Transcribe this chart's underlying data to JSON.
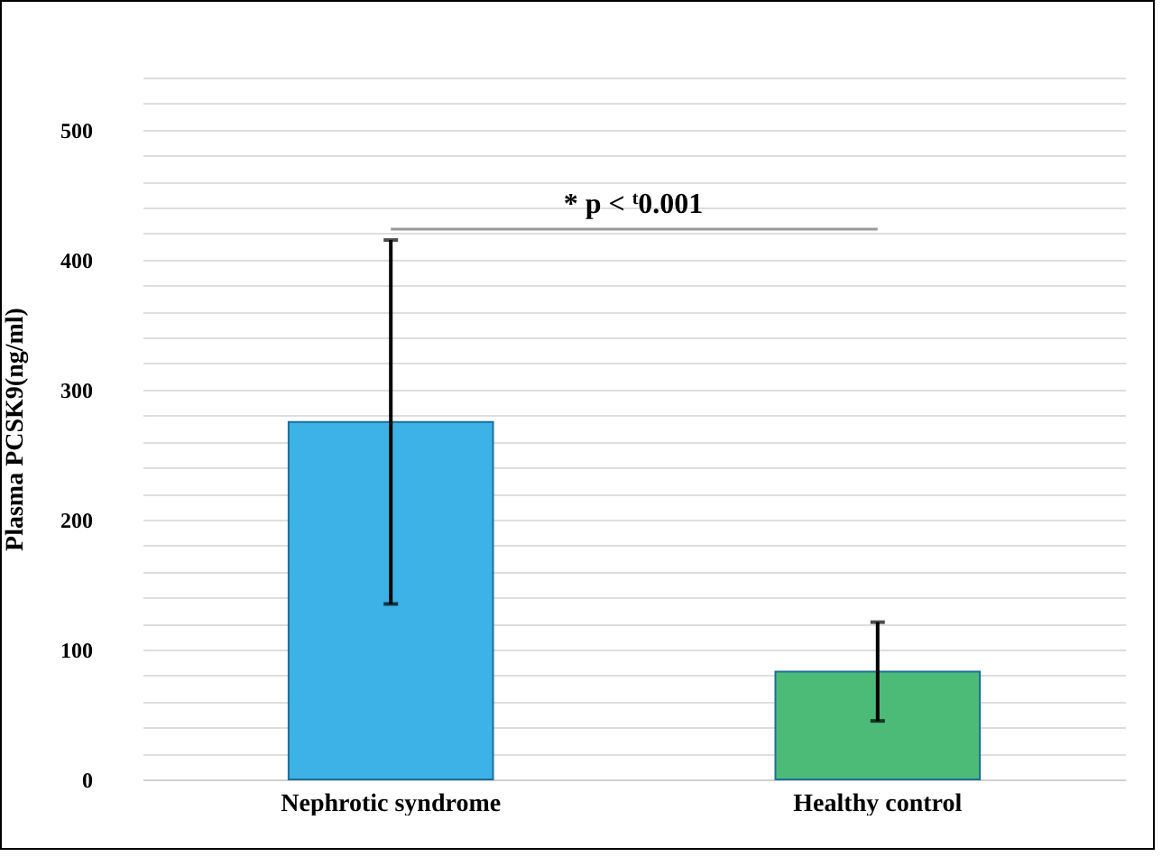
{
  "chart_data": {
    "type": "bar",
    "ylabel": "Plasma PCSK9(ng/ml)",
    "categories": [
      "Nephrotic syndrome",
      "Healthy control"
    ],
    "values": [
      275,
      83
    ],
    "colors": [
      "#3cb2e6",
      "#4dbb78"
    ],
    "errors": [
      [
        135,
        415
      ],
      [
        45,
        121
      ]
    ],
    "ylim": [
      0,
      540
    ],
    "yticks": [
      0,
      {
        "value": 20,
        "label": null
      },
      {
        "value": 40,
        "label": null
      },
      {
        "value": 60,
        "label": null
      },
      {
        "value": 80,
        "label": null
      },
      100,
      {
        "value": 120,
        "label": null
      },
      {
        "value": 140,
        "label": null
      },
      {
        "value": 160,
        "label": null
      },
      {
        "value": 180,
        "label": null
      },
      200,
      {
        "value": 220,
        "label": null
      },
      {
        "value": 240,
        "label": null
      },
      {
        "value": 260,
        "label": null
      },
      {
        "value": 280,
        "label": null
      },
      300,
      {
        "value": 320,
        "label": null
      },
      {
        "value": 340,
        "label": null
      },
      {
        "value": 360,
        "label": null
      },
      {
        "value": 380,
        "label": null
      },
      400,
      {
        "value": 420,
        "label": null
      },
      {
        "value": 440,
        "label": null
      },
      {
        "value": 460,
        "label": null
      },
      {
        "value": 480,
        "label": null
      },
      500,
      {
        "value": 520,
        "label": null
      },
      {
        "value": 540,
        "label": null
      }
    ],
    "grid": true,
    "annotations": [
      "* p < $^{t}$0.001"
    ]
  }
}
